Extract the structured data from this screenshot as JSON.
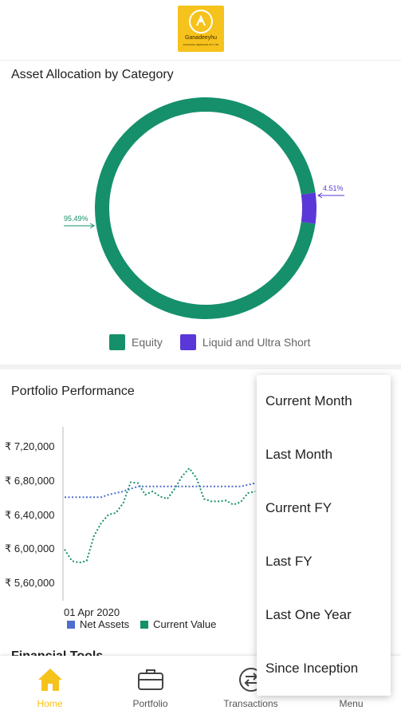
{
  "app": {
    "logo_text": "Ganadeeyhu",
    "logo_subtext": "FINANCIAL SERVICES PVT LTD"
  },
  "colors": {
    "equity": "#15906b",
    "liquid": "#5a37d8",
    "net_assets": "#4e6fd0",
    "current_value": "#15906b",
    "accent": "#f6c21c"
  },
  "allocation": {
    "title": "Asset Allocation by Category",
    "chart_data": {
      "type": "pie",
      "categories": [
        "Equity",
        "Liquid and Ultra Short"
      ],
      "values": [
        95.49,
        4.51
      ],
      "data_labels": [
        "95.49%",
        "4.51%"
      ],
      "legend": "bottom"
    },
    "legend": [
      "Equity",
      "Liquid and Ultra Short"
    ]
  },
  "performance": {
    "title": "Portfolio Performance",
    "chart_data": {
      "type": "line",
      "y_ticks": [
        "₹ 7,20,000",
        "₹ 6,80,000",
        "₹ 6,40,000",
        "₹ 6,00,000",
        "₹ 5,60,000"
      ],
      "ylim": [
        540000,
        750000
      ],
      "x_tick": "01 Apr 2020",
      "series": [
        {
          "name": "Net Assets",
          "values": [
            665000,
            665000,
            665000,
            665000,
            665000,
            665000,
            668000,
            670000,
            672000,
            675000,
            678000,
            678000,
            678000,
            678000,
            678000,
            678000,
            678000,
            678000,
            678000,
            678000,
            678000,
            678000,
            678000,
            678000,
            678000,
            680000,
            682000
          ]
        },
        {
          "name": "Current Value",
          "values": [
            602000,
            588000,
            586000,
            588000,
            618000,
            634000,
            644000,
            646000,
            658000,
            683000,
            682000,
            668000,
            672000,
            666000,
            663000,
            675000,
            690000,
            700000,
            688000,
            663000,
            660000,
            660000,
            661000,
            656000,
            659000,
            670000,
            672000
          ]
        }
      ]
    },
    "legend": [
      "Net Assets",
      "Current Value"
    ]
  },
  "menu": {
    "items": [
      "Current Month",
      "Last Month",
      "Current FY",
      "Last FY",
      "Last One Year",
      "Since Inception"
    ]
  },
  "next_section_peek": "Financial Tools",
  "nav": {
    "items": [
      {
        "label": "Home",
        "icon": "home-icon",
        "active": true
      },
      {
        "label": "Portfolio",
        "icon": "briefcase-icon",
        "active": false
      },
      {
        "label": "Transactions",
        "icon": "exchange-icon",
        "active": false
      },
      {
        "label": "Menu",
        "icon": "menu-icon",
        "active": false
      }
    ]
  }
}
